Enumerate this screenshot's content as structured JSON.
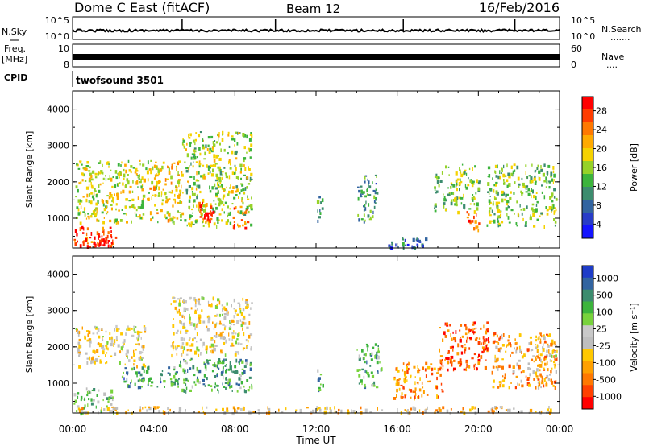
{
  "header": {
    "station": "Dome C East (fitACF)",
    "beam": "Beam 12",
    "date": "16/Feb/2016"
  },
  "panel_labels": {
    "nsky": "N.Sky",
    "freq": "Freq.",
    "freq_unit": "[MHz]",
    "cpid": "CPID",
    "cpid_value": "twofsound 3501",
    "nsearch": "N.Search",
    "nsearch_dots": ".......",
    "nave": "Nave",
    "nave_dots": "....",
    "nsky_ticks": [
      "10^5",
      "10^0"
    ],
    "nsearch_ticks": [
      "10^5",
      "10^0"
    ],
    "freq_ticks": [
      "10",
      "8"
    ],
    "nave_ticks": [
      "60",
      "0"
    ]
  },
  "chart_data": [
    {
      "type": "heatmap",
      "name": "power",
      "ylabel": "Slant Range [km]",
      "ylim": [
        180,
        4500
      ],
      "yticks": [
        "1000",
        "2000",
        "3000",
        "4000"
      ],
      "xlabel": "Time UT",
      "xticks": [
        "00:00",
        "04:00",
        "08:00",
        "12:00",
        "16:00",
        "20:00",
        "00:00"
      ],
      "colorbar_label": "Power [dB]",
      "colorbar_ticks": [
        "28",
        "24",
        "20",
        "16",
        "12",
        "8",
        "4"
      ],
      "colorbar_colors": [
        "#ff0000",
        "#ff3c00",
        "#ff7800",
        "#ffaa00",
        "#f5d200",
        "#96d228",
        "#3cb43c",
        "#3c8c6e",
        "#3264a0",
        "#283cc8",
        "#1414ff"
      ],
      "blobs": [
        {
          "t": [
            0.0,
            2.0
          ],
          "r": [
            200,
            800
          ],
          "level": 0.85
        },
        {
          "t": [
            0.1,
            3.6
          ],
          "r": [
            900,
            2600
          ],
          "level": 0.55
        },
        {
          "t": [
            1.2,
            2.2
          ],
          "r": [
            250,
            600
          ],
          "level": 0.95
        },
        {
          "t": [
            3.6,
            5.4
          ],
          "r": [
            900,
            2600
          ],
          "level": 0.6
        },
        {
          "t": [
            5.4,
            8.8
          ],
          "r": [
            800,
            3400
          ],
          "level": 0.5
        },
        {
          "t": [
            6.2,
            7.0
          ],
          "r": [
            900,
            1500
          ],
          "level": 0.9
        },
        {
          "t": [
            7.8,
            8.6
          ],
          "r": [
            700,
            1300
          ],
          "level": 0.85
        },
        {
          "t": [
            12.0,
            12.3
          ],
          "r": [
            800,
            1700
          ],
          "level": 0.3
        },
        {
          "t": [
            14.0,
            15.0
          ],
          "r": [
            900,
            2200
          ],
          "level": 0.35
        },
        {
          "t": [
            17.8,
            20.0
          ],
          "r": [
            1200,
            2500
          ],
          "level": 0.45
        },
        {
          "t": [
            19.3,
            20.1
          ],
          "r": [
            700,
            1200
          ],
          "level": 0.85
        },
        {
          "t": [
            20.4,
            23.8
          ],
          "r": [
            800,
            2500
          ],
          "level": 0.45
        },
        {
          "t": [
            15.5,
            17.6
          ],
          "r": [
            200,
            500
          ],
          "level": 0.2
        }
      ]
    },
    {
      "type": "heatmap",
      "name": "velocity",
      "ylabel": "Slant Range [km]",
      "ylim": [
        180,
        4500
      ],
      "yticks": [
        "1000",
        "2000",
        "3000",
        "4000"
      ],
      "xlabel": "Time UT",
      "xticks": [
        "00:00",
        "04:00",
        "08:00",
        "12:00",
        "16:00",
        "20:00",
        "00:00"
      ],
      "colorbar_label": "Velocity [m s⁻¹]",
      "colorbar_ticks": [
        "1000",
        "500",
        "100",
        "25",
        "-25",
        "-100",
        "-500",
        "-1000"
      ],
      "colorbar_colors": [
        "#1e3cc8",
        "#3264a0",
        "#3c8c6e",
        "#3cb43c",
        "#78d23c",
        "#c8c8c8",
        "#bebebe",
        "#ffc800",
        "#ffa000",
        "#ff7800",
        "#ff4000",
        "#ff0000"
      ],
      "blobs": [
        {
          "t": [
            0.0,
            2.0
          ],
          "r": [
            200,
            900
          ],
          "level": 0.62
        },
        {
          "t": [
            0.1,
            3.6
          ],
          "r": [
            1500,
            2600
          ],
          "level": 0.45
        },
        {
          "t": [
            2.4,
            5.2
          ],
          "r": [
            900,
            1500
          ],
          "level": 0.75
        },
        {
          "t": [
            4.8,
            8.8
          ],
          "r": [
            1800,
            3400
          ],
          "level": 0.45
        },
        {
          "t": [
            5.2,
            8.8
          ],
          "r": [
            800,
            1700
          ],
          "level": 0.72
        },
        {
          "t": [
            12.0,
            12.3
          ],
          "r": [
            800,
            1500
          ],
          "level": 0.72
        },
        {
          "t": [
            14.0,
            15.2
          ],
          "r": [
            900,
            2100
          ],
          "level": 0.7
        },
        {
          "t": [
            15.8,
            18.2
          ],
          "r": [
            600,
            1600
          ],
          "level": 0.25
        },
        {
          "t": [
            18.0,
            20.5
          ],
          "r": [
            1400,
            2700
          ],
          "level": 0.15
        },
        {
          "t": [
            20.6,
            23.8
          ],
          "r": [
            900,
            2400
          ],
          "level": 0.3
        },
        {
          "t": [
            22.6,
            23.9
          ],
          "r": [
            1600,
            2100
          ],
          "level": 0.45
        },
        {
          "t": [
            0.0,
            23.9
          ],
          "r": [
            200,
            380
          ],
          "level": 0.4
        }
      ]
    }
  ]
}
